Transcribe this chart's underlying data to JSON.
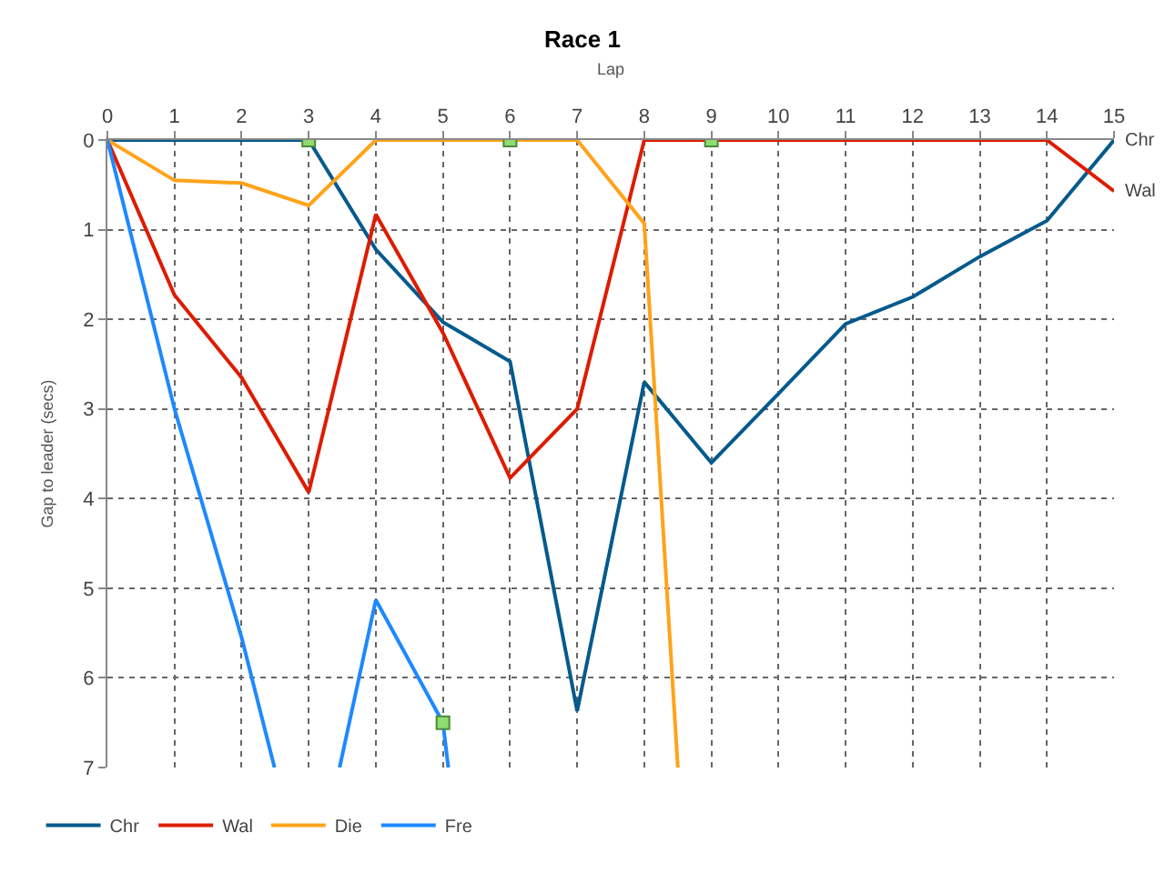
{
  "chart_data": {
    "type": "line",
    "title": "Race 1",
    "xlabel": "Lap",
    "ylabel": "Gap to leader (secs)",
    "x": [
      0,
      1,
      2,
      3,
      4,
      5,
      6,
      7,
      8,
      9,
      10,
      11,
      12,
      13,
      14,
      15
    ],
    "xlim": [
      0,
      15
    ],
    "xticks": [
      0,
      1,
      2,
      3,
      4,
      5,
      6,
      7,
      8,
      9,
      10,
      11,
      12,
      13,
      14,
      15
    ],
    "ylim": [
      7,
      0
    ],
    "yticks": [
      0,
      1,
      2,
      3,
      4,
      5,
      6,
      7
    ],
    "grid": true,
    "legend": "bottom left",
    "line_style": "solid",
    "marker": "none",
    "series": [
      {
        "name": "Chr",
        "color": "#045a8d",
        "values": [
          0,
          0,
          0,
          0,
          1.22,
          2.03,
          2.47,
          6.37,
          2.7,
          3.6,
          2.83,
          2.05,
          1.75,
          1.3,
          0.9,
          0
        ]
      },
      {
        "name": "Wal",
        "color": "#dd1c00",
        "values": [
          0,
          1.73,
          2.65,
          3.93,
          0.83,
          2.15,
          3.77,
          3.0,
          0,
          0,
          0,
          0,
          0,
          0,
          0,
          0.57
        ]
      },
      {
        "name": "Die",
        "color": "#ffa31a",
        "x": [
          0,
          1,
          2,
          3,
          4,
          5,
          6,
          7,
          8,
          8.5
        ],
        "values": [
          0,
          0.45,
          0.48,
          0.73,
          0,
          0,
          0,
          0,
          0.93,
          7
        ]
      },
      {
        "name": "Fre",
        "color": "#1e88ff",
        "x": [
          0,
          1,
          2,
          2.49,
          3,
          3.46,
          4,
          5,
          5.08
        ],
        "values": [
          0,
          3.0,
          5.55,
          7,
          null,
          7,
          5.13,
          6.5,
          7
        ]
      },
      {
        "type": "scatter",
        "color": "#8fdc6f",
        "marker": "square",
        "x": [
          3,
          6,
          9,
          5
        ],
        "values": [
          0,
          0,
          0,
          6.5
        ]
      }
    ],
    "annotations": [
      {
        "text": "Chr",
        "x": 15,
        "y": 0
      },
      {
        "text": "Wal",
        "x": 15,
        "y": 0.57
      }
    ]
  }
}
